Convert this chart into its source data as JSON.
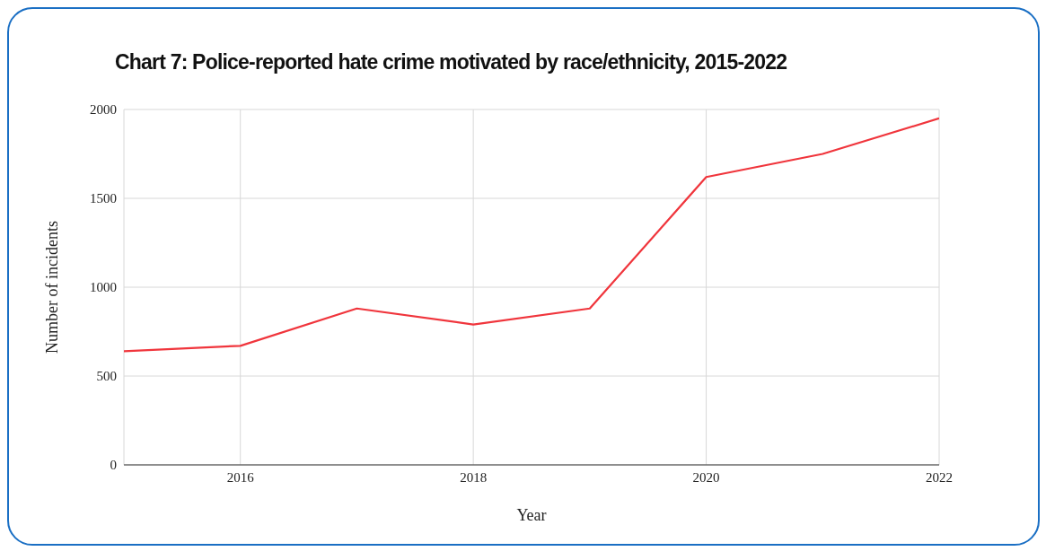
{
  "chart_data": {
    "type": "line",
    "title": "Chart 7: Police-reported hate crime motivated by race/ethnicity, 2015-2022",
    "xlabel": "Year",
    "ylabel": "Number of incidents",
    "x": [
      2015,
      2016,
      2017,
      2018,
      2019,
      2020,
      2021,
      2022
    ],
    "series": [
      {
        "color": "#f0353c",
        "values": [
          640,
          670,
          880,
          790,
          880,
          1620,
          1750,
          1950
        ]
      }
    ],
    "xlim": [
      2015,
      2022
    ],
    "xticks": [
      2016,
      2018,
      2020,
      2022
    ],
    "ylim": [
      0,
      2000
    ],
    "yticks": [
      0,
      500,
      1000,
      1500,
      2000
    ],
    "grid": true,
    "marker": "none",
    "line_style": "solid",
    "legend": false
  }
}
